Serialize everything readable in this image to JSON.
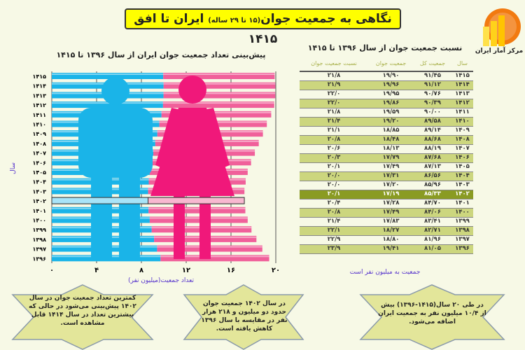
{
  "header": {
    "title_main": "نگاهی به جمعیت جوان",
    "title_sub": "(۱۵ تا ۲۹ ساله)",
    "title_end": " ایران تا افق ۱۴۱۵",
    "logo_text": "مرکز آمار ایران"
  },
  "chart_data": {
    "type": "bar",
    "orientation": "horizontal",
    "title": "پیش‌بینی تعداد جمعیت جوان ایران از سال ۱۳۹۶ تا ۱۴۱۵",
    "xlabel": "تعداد جمعیت(میلیون نفر)",
    "ylabel": "سال",
    "xlim": [
      0,
      20
    ],
    "xticks": [
      "۰",
      "۴",
      "۸",
      "۱۲",
      "۱۶",
      "۲۰"
    ],
    "xtick_values": [
      0,
      4,
      8,
      12,
      16,
      20
    ],
    "categories": [
      "۱۴۱۵",
      "۱۴۱۴",
      "۱۴۱۳",
      "۱۴۱۲",
      "۱۴۱۱",
      "۱۴۱۰",
      "۱۴۰۹",
      "۱۴۰۸",
      "۱۴۰۷",
      "۱۴۰۶",
      "۱۴۰۵",
      "۱۴۰۴",
      "۱۴۰۳",
      "۱۴۰۲",
      "۱۴۰۱",
      "۱۴۰۰",
      "۱۳۹۹",
      "۱۳۹۸",
      "۱۳۹۷",
      "۱۳۹۶"
    ],
    "values": [
      19.9,
      19.96,
      19.95,
      19.86,
      19.59,
      19.2,
      18.85,
      18.48,
      18.13,
      17.79,
      17.49,
      17.31,
      17.2,
      17.19,
      17.28,
      17.49,
      17.83,
      18.27,
      18.8,
      19.41
    ],
    "highlight": "۱۴۰۲",
    "colors": {
      "male": "#1ab4e8",
      "female": "#f0609a"
    }
  },
  "table": {
    "title": "نسبت جمعیت جوان از سال ۱۳۹۶ تا ۱۴۱۵",
    "headers": [
      "سال",
      "جمعیت کل",
      "جمعیت جوان",
      "نسبت جمعیت جوان"
    ],
    "rows": [
      [
        "۱۴۱۵",
        "۹۱/۴۵",
        "۱۹/۹۰",
        "۲۱/۸"
      ],
      [
        "۱۴۱۴",
        "۹۱/۱۲",
        "۱۹/۹۶",
        "۲۱/۹"
      ],
      [
        "۱۴۱۳",
        "۹۰/۷۶",
        "۱۹/۹۵",
        "۲۲/۰"
      ],
      [
        "۱۴۱۲",
        "۹۰/۳۹",
        "۱۹/۸۶",
        "۲۲/۰"
      ],
      [
        "۱۴۱۱",
        "۹۰/۰۰",
        "۱۹/۵۹",
        "۲۱/۸"
      ],
      [
        "۱۴۱۰",
        "۸۹/۵۸",
        "۱۹/۲۰",
        "۲۱/۴"
      ],
      [
        "۱۴۰۹",
        "۸۹/۱۴",
        "۱۸/۸۵",
        "۲۱/۱"
      ],
      [
        "۱۴۰۸",
        "۸۸/۶۸",
        "۱۸/۴۸",
        "۲۰/۸"
      ],
      [
        "۱۴۰۷",
        "۸۸/۱۹",
        "۱۸/۱۳",
        "۲۰/۶"
      ],
      [
        "۱۴۰۶",
        "۸۷/۶۸",
        "۱۷/۷۹",
        "۲۰/۳"
      ],
      [
        "۱۴۰۵",
        "۸۷/۱۳",
        "۱۷/۴۹",
        "۲۰/۱"
      ],
      [
        "۱۴۰۴",
        "۸۶/۵۶",
        "۱۷/۳۱",
        "۲۰/۰"
      ],
      [
        "۱۴۰۳",
        "۸۵/۹۶",
        "۱۷/۲۰",
        "۲۰/۰"
      ],
      [
        "۱۴۰۲",
        "۸۵/۳۳",
        "۱۷/۱۹",
        "۲۰/۱"
      ],
      [
        "۱۴۰۱",
        "۸۴/۷۰",
        "۱۷/۲۸",
        "۲۰/۴"
      ],
      [
        "۱۴۰۰",
        "۸۴/۰۶",
        "۱۷/۴۹",
        "۲۰/۸"
      ],
      [
        "۱۳۹۹",
        "۸۳/۴۱",
        "۱۷/۸۳",
        "۲۱/۴"
      ],
      [
        "۱۳۹۸",
        "۸۲/۷۱",
        "۱۸/۲۷",
        "۲۲/۱"
      ],
      [
        "۱۳۹۷",
        "۸۱/۹۶",
        "۱۸/۸۰",
        "۲۲/۹"
      ],
      [
        "۱۳۹۶",
        "۸۱/۰۵",
        "۱۹/۴۱",
        "۲۳/۹"
      ]
    ],
    "note": "جمعیت به میلیون نفر است"
  },
  "notes": [
    "کمترین تعداد جمعیت جوان در سال ۱۴۰۲ پیش‌بینی می‌شود در حالی که بیشترین تعداد در سال ۱۴۱۴ قابل مشاهده است.",
    "در سال ۱۴۰۲ جمعیت جوان حدود دو میلیون و ۲۱۸ هزار نفر در مقایسه با سال ۱۳۹۶ کاهش یافته است.",
    "در طی ۲۰ سال(۱۴۱۵-۱۳۹۶) بیش از ۱۰/۴ میلیون نفر به جمعیت ایران اضافه می‌شود."
  ]
}
